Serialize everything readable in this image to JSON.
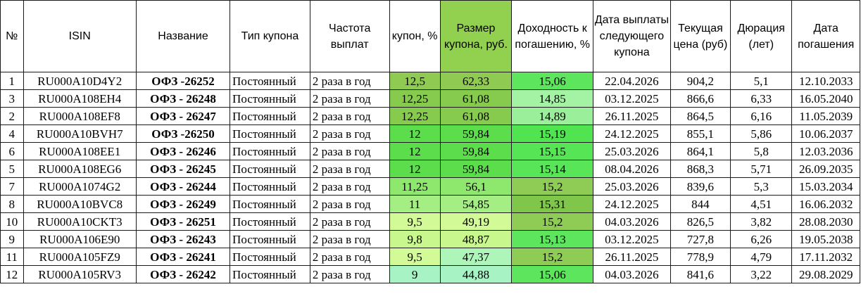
{
  "table": {
    "headers": [
      "№",
      "ISIN",
      "Название",
      "Тип купона",
      "Частота выплат",
      "купон, %",
      "Размер купона, руб.",
      "Доходность к погашению, %",
      "Дата выплаты следующего купона",
      "Текущая цена (руб)",
      "Дюрация (лет)",
      "Дата погашения"
    ],
    "header_highlight": "#92d050",
    "rows": [
      {
        "n": "1",
        "isin": "RU000A10D4Y2",
        "name": "ОФЗ -26252",
        "type": "Постоянный",
        "freq": "2 раза в год",
        "coupon": "12,5",
        "coupon_rub": "62,33",
        "ytm": "15,06",
        "next": "22.04.2026",
        "price": "904,2",
        "dur": "5,1",
        "maturity": "12.10.2033",
        "c1": "#8fcb52",
        "c2": "#8fcb52",
        "c3": "#5ee55e"
      },
      {
        "n": "3",
        "isin": "RU000A108EH4",
        "name": "ОФЗ - 26248",
        "type": "Постоянный",
        "freq": "2 раза в год",
        "coupon": "12,25",
        "coupon_rub": "61,08",
        "ytm": "14,85",
        "next": "03.12.2025",
        "price": "866,6",
        "dur": "6,33",
        "maturity": "16.05.2040",
        "c1": "#86ca4e",
        "c2": "#86ca4e",
        "c3": "#a4f3a4"
      },
      {
        "n": "2",
        "isin": "RU000A108EF8",
        "name": "ОФЗ - 26247",
        "type": "Постоянный",
        "freq": "2 раза в год",
        "coupon": "12,25",
        "coupon_rub": "61,08",
        "ytm": "14,89",
        "next": "26.11.2025",
        "price": "864,5",
        "dur": "6,16",
        "maturity": "11.05.2039",
        "c1": "#86ca4e",
        "c2": "#86ca4e",
        "c3": "#9af09a"
      },
      {
        "n": "4",
        "isin": "RU000A10BVH7",
        "name": "ОФЗ -26250",
        "type": "Постоянный",
        "freq": "2 раза в год",
        "coupon": "12",
        "coupon_rub": "59,84",
        "ytm": "15,19",
        "next": "24.12.2025",
        "price": "855,1",
        "dur": "5,86",
        "maturity": "10.06.2037",
        "c1": "#5cde4c",
        "c2": "#5cde4c",
        "c3": "#51e451"
      },
      {
        "n": "6",
        "isin": "RU000A108EE1",
        "name": "ОФЗ - 26246",
        "type": "Постоянный",
        "freq": "2 раза в год",
        "coupon": "12",
        "coupon_rub": "59,84",
        "ytm": "15,15",
        "next": "25.03.2026",
        "price": "864,1",
        "dur": "5,8",
        "maturity": "12.03.2036",
        "c1": "#5cde4c",
        "c2": "#5cde4c",
        "c3": "#55e555"
      },
      {
        "n": "5",
        "isin": "RU000A108EG6",
        "name": "ОФЗ - 26245",
        "type": "Постоянный",
        "freq": "2 раза в год",
        "coupon": "12",
        "coupon_rub": "59,84",
        "ytm": "15,14",
        "next": "08.04.2026",
        "price": "868,3",
        "dur": "5,71",
        "maturity": "26.09.2035",
        "c1": "#5cde4c",
        "c2": "#5cde4c",
        "c3": "#58e658"
      },
      {
        "n": "7",
        "isin": "RU000A1074G2",
        "name": "ОФЗ - 26244",
        "type": "Постоянный",
        "freq": "2 раза в год",
        "coupon": "11,25",
        "coupon_rub": "56,1",
        "ytm": "15,2",
        "next": "25.03.2026",
        "price": "839,6",
        "dur": "5,3",
        "maturity": "15.03.2034",
        "c1": "#8ee86e",
        "c2": "#8ee86e",
        "c3": "#8fcc55"
      },
      {
        "n": "8",
        "isin": "RU000A10BVC8",
        "name": "ОФЗ - 26249",
        "type": "Постоянный",
        "freq": "2 раза в год",
        "coupon": "11",
        "coupon_rub": "54,85",
        "ytm": "15,31",
        "next": "24.12.2025",
        "price": "844",
        "dur": "4,51",
        "maturity": "16.06.2032",
        "c1": "#a5ee84",
        "c2": "#a5ee84",
        "c3": "#7fc64a"
      },
      {
        "n": "10",
        "isin": "RU000A10CKT3",
        "name": "ОФЗ - 26251",
        "type": "Постоянный",
        "freq": "2 раза в год",
        "coupon": "9,5",
        "coupon_rub": "49,19",
        "ytm": "15,2",
        "next": "04.03.2026",
        "price": "826,5",
        "dur": "3,82",
        "maturity": "28.08.2030",
        "c1": "#d2fa96",
        "c2": "#d2fa96",
        "c3": "#8fcc55"
      },
      {
        "n": "9",
        "isin": "RU000A106E90",
        "name": "ОФЗ - 26243",
        "type": "Постоянный",
        "freq": "2 раза в год",
        "coupon": "9,8",
        "coupon_rub": "48,87",
        "ytm": "15,13",
        "next": "03.12.2025",
        "price": "727,8",
        "dur": "6,26",
        "maturity": "19.05.2038",
        "c1": "#c8f78d",
        "c2": "#c8f78d",
        "c3": "#5ee55e"
      },
      {
        "n": "11",
        "isin": "RU000A105FZ9",
        "name": "ОФЗ - 26241",
        "type": "Постоянный",
        "freq": "2 раза в год",
        "coupon": "9,5",
        "coupon_rub": "47,37",
        "ytm": "15,2",
        "next": "26.11.2025",
        "price": "778,9",
        "dur": "4,79",
        "maturity": "17.11.2032",
        "c1": "#d2fa96",
        "c2": "#aef5b9",
        "c3": "#8fcc55"
      },
      {
        "n": "12",
        "isin": "RU000A105RV3",
        "name": "ОФЗ - 26242",
        "type": "Постоянный",
        "freq": "2 раза в год",
        "coupon": "9",
        "coupon_rub": "44,88",
        "ytm": "15,06",
        "next": "04.03.2026",
        "price": "841,6",
        "dur": "3,22",
        "maturity": "29.08.2029",
        "c1": "#a7f3c3",
        "c2": "#a7f3c3",
        "c3": "#5ee55e"
      }
    ]
  }
}
